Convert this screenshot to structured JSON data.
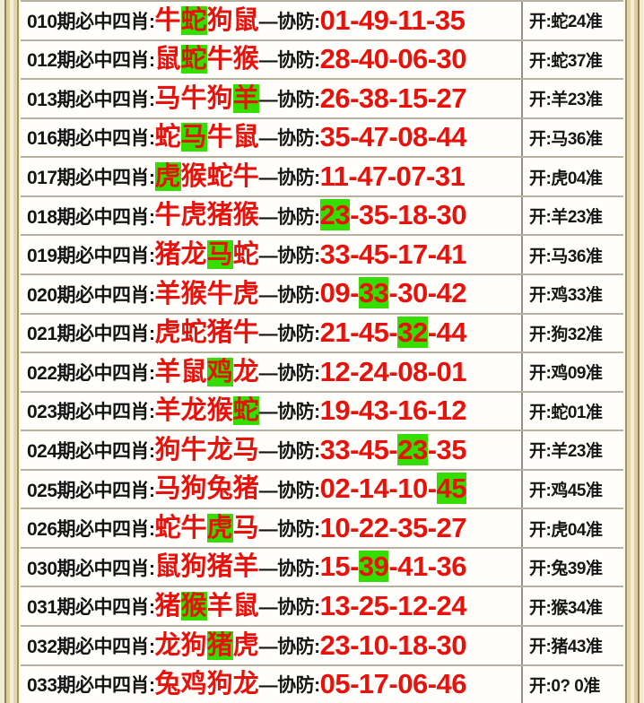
{
  "labels": {
    "period_suffix": "期必中四肖:",
    "defense_label": "—协防:",
    "number_separator": "-"
  },
  "colors": {
    "red": "#e8120c",
    "green": "#35dd00",
    "black": "#141414",
    "frame_gold": "#ddd0a0",
    "frame_cream": "#f1ecd6"
  },
  "rows": [
    {
      "period": "010",
      "animals": [
        "牛",
        "蛇",
        "狗",
        "鼠"
      ],
      "animal_hl": 1,
      "numbers": [
        "01",
        "49",
        "11",
        "35"
      ],
      "number_hl": -1,
      "result": "开:蛇24准"
    },
    {
      "period": "012",
      "animals": [
        "鼠",
        "蛇",
        "牛",
        "猴"
      ],
      "animal_hl": 1,
      "numbers": [
        "28",
        "40",
        "06",
        "30"
      ],
      "number_hl": -1,
      "result": "开:蛇37准"
    },
    {
      "period": "013",
      "animals": [
        "马",
        "牛",
        "狗",
        "羊"
      ],
      "animal_hl": 3,
      "numbers": [
        "26",
        "38",
        "15",
        "27"
      ],
      "number_hl": -1,
      "result": "开:羊23准"
    },
    {
      "period": "016",
      "animals": [
        "蛇",
        "马",
        "牛",
        "鼠"
      ],
      "animal_hl": 1,
      "numbers": [
        "35",
        "47",
        "08",
        "44"
      ],
      "number_hl": -1,
      "result": "开:马36准"
    },
    {
      "period": "017",
      "animals": [
        "虎",
        "猴",
        "蛇",
        "牛"
      ],
      "animal_hl": 0,
      "numbers": [
        "11",
        "47",
        "07",
        "31"
      ],
      "number_hl": -1,
      "result": "开:虎04准"
    },
    {
      "period": "018",
      "animals": [
        "牛",
        "虎",
        "猪",
        "猴"
      ],
      "animal_hl": -1,
      "numbers": [
        "23",
        "35",
        "18",
        "30"
      ],
      "number_hl": 0,
      "result": "开:羊23准"
    },
    {
      "period": "019",
      "animals": [
        "猪",
        "龙",
        "马",
        "蛇"
      ],
      "animal_hl": 2,
      "numbers": [
        "33",
        "45",
        "17",
        "41"
      ],
      "number_hl": -1,
      "result": "开:马36准"
    },
    {
      "period": "020",
      "animals": [
        "羊",
        "猴",
        "牛",
        "虎"
      ],
      "animal_hl": -1,
      "numbers": [
        "09",
        "33",
        "30",
        "42"
      ],
      "number_hl": 1,
      "result": "开:鸡33准"
    },
    {
      "period": "021",
      "animals": [
        "虎",
        "蛇",
        "猪",
        "牛"
      ],
      "animal_hl": -1,
      "numbers": [
        "21",
        "45",
        "32",
        "44"
      ],
      "number_hl": 2,
      "result": "开:狗32准"
    },
    {
      "period": "022",
      "animals": [
        "羊",
        "鼠",
        "鸡",
        "龙"
      ],
      "animal_hl": 2,
      "numbers": [
        "12",
        "24",
        "08",
        "01"
      ],
      "number_hl": -1,
      "result": "开:鸡09准"
    },
    {
      "period": "023",
      "animals": [
        "羊",
        "龙",
        "猴",
        "蛇"
      ],
      "animal_hl": 3,
      "numbers": [
        "19",
        "43",
        "16",
        "12"
      ],
      "number_hl": -1,
      "result": "开:蛇01准"
    },
    {
      "period": "024",
      "animals": [
        "狗",
        "牛",
        "龙",
        "马"
      ],
      "animal_hl": -1,
      "numbers": [
        "33",
        "45",
        "23",
        "35"
      ],
      "number_hl": 2,
      "result": "开:羊23准"
    },
    {
      "period": "025",
      "animals": [
        "马",
        "狗",
        "兔",
        "猪"
      ],
      "animal_hl": -1,
      "numbers": [
        "02",
        "14",
        "10",
        "45"
      ],
      "number_hl": 3,
      "result": "开:鸡45准"
    },
    {
      "period": "026",
      "animals": [
        "蛇",
        "牛",
        "虎",
        "马"
      ],
      "animal_hl": 2,
      "numbers": [
        "10",
        "22",
        "35",
        "27"
      ],
      "number_hl": -1,
      "result": "开:虎04准"
    },
    {
      "period": "030",
      "animals": [
        "鼠",
        "狗",
        "猪",
        "羊"
      ],
      "animal_hl": -1,
      "numbers": [
        "15",
        "39",
        "41",
        "36"
      ],
      "number_hl": 1,
      "result": "开:兔39准"
    },
    {
      "period": "031",
      "animals": [
        "猪",
        "猴",
        "羊",
        "鼠"
      ],
      "animal_hl": 1,
      "numbers": [
        "13",
        "25",
        "12",
        "24"
      ],
      "number_hl": -1,
      "result": "开:猴34准"
    },
    {
      "period": "032",
      "animals": [
        "龙",
        "狗",
        "猪",
        "虎"
      ],
      "animal_hl": 2,
      "numbers": [
        "23",
        "10",
        "18",
        "30"
      ],
      "number_hl": -1,
      "result": "开:猪43准"
    },
    {
      "period": "033",
      "animals": [
        "兔",
        "鸡",
        "狗",
        "龙"
      ],
      "animal_hl": -1,
      "numbers": [
        "05",
        "17",
        "06",
        "46"
      ],
      "number_hl": -1,
      "result": "开:0? 0准"
    }
  ]
}
